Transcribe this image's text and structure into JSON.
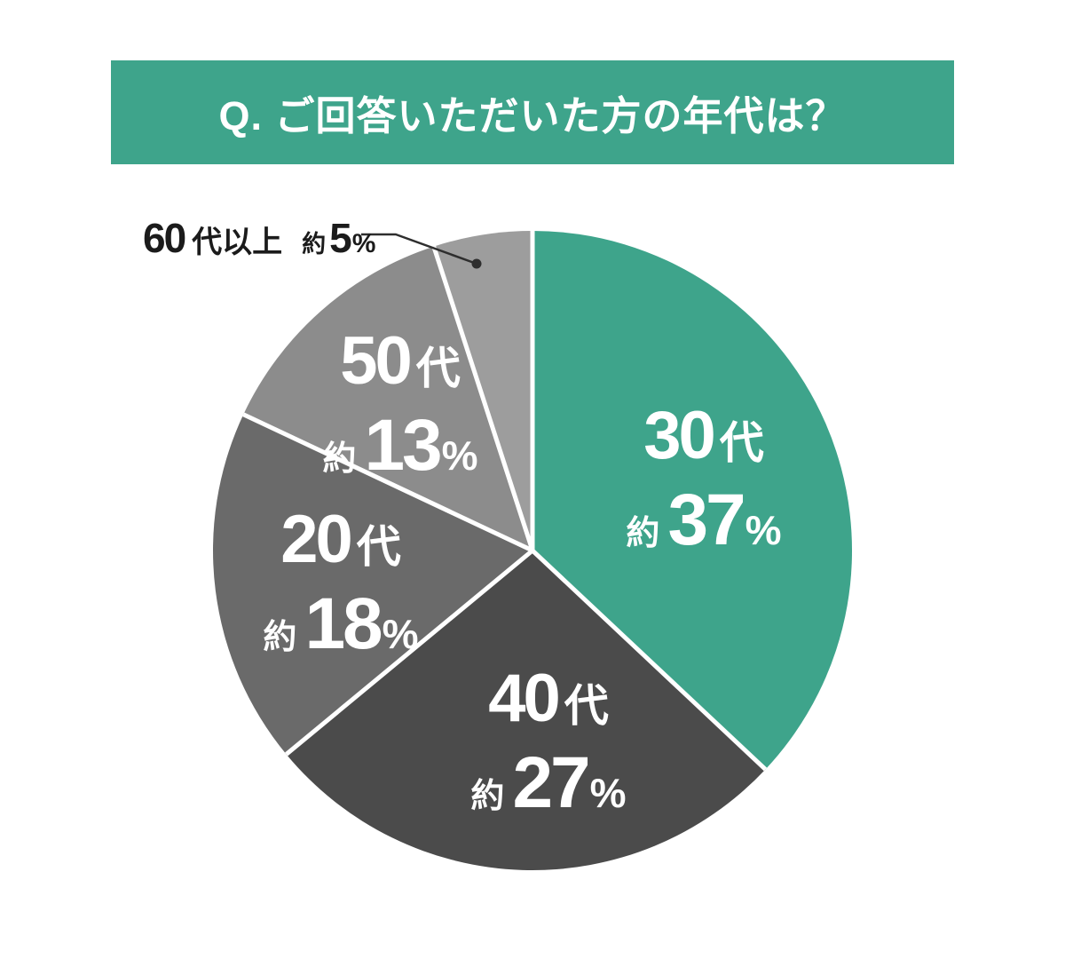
{
  "page": {
    "background_color": "#ffffff"
  },
  "header": {
    "title": "Q. ご回答いただいた方の年代は？",
    "bg_color": "#3EA48B",
    "text_color": "#ffffff"
  },
  "chart_data": {
    "type": "pie",
    "title": "ご回答いただいた方の年代は？",
    "start_angle": "12-oclock",
    "direction": "clockwise",
    "separator_color": "#ffffff",
    "categories": [
      "30代",
      "40代",
      "20代",
      "50代",
      "60代以上"
    ],
    "values": [
      37,
      27,
      18,
      13,
      5
    ],
    "segments": [
      {
        "category": "30代",
        "value": 37,
        "color": "#3EA48B",
        "num": "30",
        "suffix": "代",
        "approx": "約",
        "pct": "37",
        "pct_sign": "%",
        "label_placement": "inside"
      },
      {
        "category": "40代",
        "value": 27,
        "color": "#4B4B4B",
        "num": "40",
        "suffix": "代",
        "approx": "約",
        "pct": "27",
        "pct_sign": "%",
        "label_placement": "inside"
      },
      {
        "category": "20代",
        "value": 18,
        "color": "#6A6A6A",
        "num": "20",
        "suffix": "代",
        "approx": "約",
        "pct": "18",
        "pct_sign": "%",
        "label_placement": "inside"
      },
      {
        "category": "50代",
        "value": 13,
        "color": "#8C8C8C",
        "num": "50",
        "suffix": "代",
        "approx": "約",
        "pct": "13",
        "pct_sign": "%",
        "label_placement": "inside"
      },
      {
        "category": "60代以上",
        "value": 5,
        "color": "#9D9D9D",
        "num": "60",
        "suffix": "代以上",
        "approx": "約",
        "pct": "5",
        "pct_sign": "%",
        "label_placement": "callout-top-left"
      }
    ],
    "callout": {
      "line_color": "#2E2E2E",
      "text_color": "#1B1B1B"
    }
  }
}
